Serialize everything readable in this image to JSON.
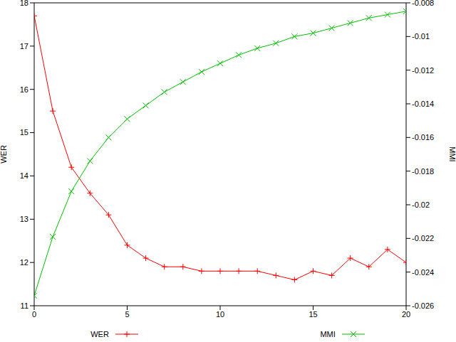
{
  "chart_data": {
    "type": "line",
    "x": [
      0,
      1,
      2,
      3,
      4,
      5,
      6,
      7,
      8,
      9,
      10,
      11,
      12,
      13,
      14,
      15,
      16,
      17,
      18,
      19,
      20
    ],
    "xlim": [
      0,
      20
    ],
    "xticks": [
      0,
      5,
      10,
      15,
      20
    ],
    "ylim": [
      11,
      18
    ],
    "yticks": [
      11,
      12,
      13,
      14,
      15,
      16,
      17,
      18
    ],
    "y2lim": [
      -0.026,
      -0.008
    ],
    "y2ticks": [
      -0.026,
      -0.024,
      -0.022,
      -0.02,
      -0.018,
      -0.016,
      -0.014,
      -0.012,
      -0.01,
      -0.008
    ],
    "ylabel": "WER",
    "y2label": "MMI",
    "legend": "bottom",
    "grid": false,
    "series": [
      {
        "name": "WER",
        "color": "#ff0000",
        "marker": "plus",
        "line_style": "solid",
        "values": [
          17.7,
          15.5,
          14.2,
          13.6,
          13.1,
          12.4,
          12.1,
          11.9,
          11.9,
          11.8,
          11.8,
          11.8,
          11.8,
          11.7,
          11.6,
          11.8,
          11.7,
          12.1,
          11.9,
          12.3,
          12.0
        ]
      },
      {
        "name": "MMI",
        "color": "#00c000",
        "marker": "cross",
        "line_style": "solid",
        "axis": "y2",
        "values": [
          -0.0254,
          -0.0219,
          -0.0192,
          -0.0174,
          -0.016,
          -0.0149,
          -0.0141,
          -0.0133,
          -0.0127,
          -0.0121,
          -0.0116,
          -0.0111,
          -0.0107,
          -0.0104,
          -0.01,
          -0.0098,
          -0.0095,
          -0.0092,
          -0.0089,
          -0.0087,
          -0.0085
        ]
      }
    ]
  }
}
